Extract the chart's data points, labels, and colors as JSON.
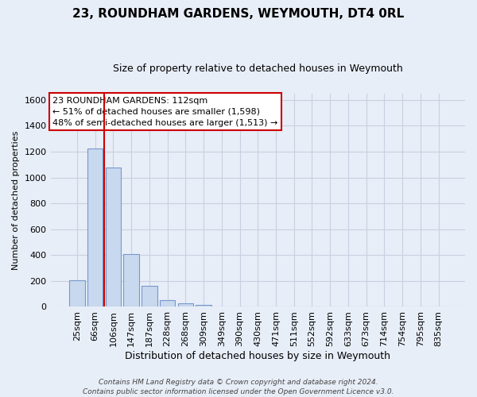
{
  "title": "23, ROUNDHAM GARDENS, WEYMOUTH, DT4 0RL",
  "subtitle": "Size of property relative to detached houses in Weymouth",
  "xlabel": "Distribution of detached houses by size in Weymouth",
  "ylabel": "Number of detached properties",
  "footer_line1": "Contains HM Land Registry data © Crown copyright and database right 2024.",
  "footer_line2": "Contains public sector information licensed under the Open Government Licence v3.0.",
  "bar_labels": [
    "25sqm",
    "66sqm",
    "106sqm",
    "147sqm",
    "187sqm",
    "228sqm",
    "268sqm",
    "309sqm",
    "349sqm",
    "390sqm",
    "430sqm",
    "471sqm",
    "511sqm",
    "552sqm",
    "592sqm",
    "633sqm",
    "673sqm",
    "714sqm",
    "754sqm",
    "795sqm",
    "835sqm"
  ],
  "bar_values": [
    205,
    1225,
    1075,
    410,
    160,
    55,
    25,
    15,
    0,
    0,
    0,
    0,
    0,
    0,
    0,
    0,
    0,
    0,
    0,
    0,
    0
  ],
  "bar_color": "#c8d8ee",
  "bar_edge_color": "#7799cc",
  "vline_color": "#cc0000",
  "annotation_title": "23 ROUNDHAM GARDENS: 112sqm",
  "annotation_line1": "← 51% of detached houses are smaller (1,598)",
  "annotation_line2": "48% of semi-detached houses are larger (1,513) →",
  "annotation_box_facecolor": "#ffffff",
  "annotation_box_edgecolor": "#cc0000",
  "ylim": [
    0,
    1650
  ],
  "yticks": [
    0,
    200,
    400,
    600,
    800,
    1000,
    1200,
    1400,
    1600
  ],
  "background_color": "#e8eef8",
  "plot_background_color": "#e8eef8",
  "grid_color": "#c8d0e0",
  "title_fontsize": 11,
  "subtitle_fontsize": 9,
  "xlabel_fontsize": 9,
  "ylabel_fontsize": 8,
  "tick_fontsize": 8,
  "footer_fontsize": 6.5
}
